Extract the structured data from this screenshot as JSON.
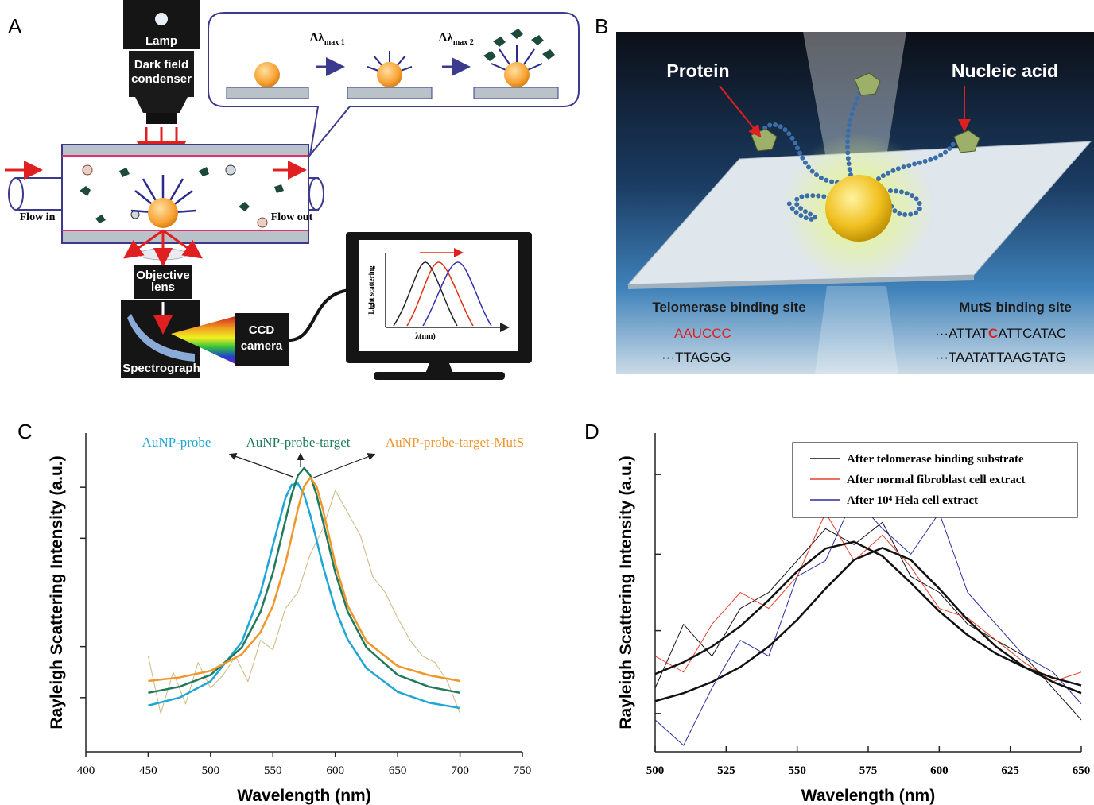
{
  "panel_labels": [
    "A",
    "B",
    "C",
    "D"
  ],
  "diagram_a": {
    "lamp": "Lamp",
    "condenser": [
      "Dark field",
      "condenser"
    ],
    "flow_in": "Flow in",
    "flow_out": "Flow out",
    "objective": [
      "Objective",
      "lens"
    ],
    "spectrograph": "Spectrograph",
    "camera": [
      "CCD",
      "camera"
    ],
    "shift_1": [
      "Δλ",
      "max 1"
    ],
    "shift_2": [
      "Δλ",
      "max 2"
    ],
    "monitor_ylabel": "Light scattering",
    "monitor_xlabel": "λ(nm)"
  },
  "diagram_b": {
    "protein": "Protein",
    "nucleic_acid": "Nucleic acid",
    "telomerase_site": "Telomerase binding site",
    "muts_site": "MutS binding site",
    "telomerase_rna": "AAUCCC",
    "telomerase_dna": "···TTAGGG",
    "muts_top": [
      "···ATTAT",
      "C",
      "ATTCATAC"
    ],
    "muts_bottom": "···TAATATTAAGTATG"
  },
  "chart_data": [
    {
      "type": "line",
      "xlabel": "Wavelength (nm)",
      "ylabel": "Rayleigh Scattering Intensity (a.u.)",
      "xlim": [
        400,
        750
      ],
      "xticks": [
        400,
        450,
        500,
        550,
        600,
        650,
        700,
        750
      ],
      "ylim": [
        0,
        1
      ],
      "yticks": [
        {
          "value": 0.17,
          "label": null
        },
        {
          "value": 0.33,
          "label": null
        },
        {
          "value": 0.67,
          "label": null
        },
        {
          "value": 0.83,
          "label": null
        }
      ],
      "legend": "top",
      "series": [
        {
          "color": "#cdb77c",
          "line_width": 1,
          "x": [
            450,
            460,
            470,
            480,
            490,
            500,
            510,
            520,
            530,
            540,
            550,
            560,
            570,
            580,
            590,
            600,
            610,
            620,
            630,
            640,
            650,
            660,
            670,
            680,
            690,
            700
          ],
          "values": [
            0.3,
            0.12,
            0.25,
            0.15,
            0.28,
            0.2,
            0.24,
            0.3,
            0.22,
            0.35,
            0.32,
            0.45,
            0.5,
            0.62,
            0.7,
            0.82,
            0.75,
            0.68,
            0.55,
            0.5,
            0.42,
            0.35,
            0.3,
            0.28,
            0.22,
            0.12
          ]
        },
        {
          "name": "AuNP-probe",
          "color": "#1fa6d6",
          "line_width": 2.5,
          "x": [
            450,
            475,
            500,
            525,
            540,
            550,
            560,
            565,
            570,
            575,
            580,
            585,
            590,
            600,
            610,
            625,
            650,
            675,
            700
          ],
          "values": [
            0.145,
            0.17,
            0.221,
            0.344,
            0.498,
            0.648,
            0.796,
            0.838,
            0.842,
            0.807,
            0.742,
            0.664,
            0.584,
            0.448,
            0.352,
            0.262,
            0.188,
            0.154,
            0.137
          ]
        },
        {
          "name": "AuNP-probe-target",
          "color": "#1e7a5a",
          "line_width": 2.5,
          "x": [
            450,
            475,
            500,
            525,
            540,
            550,
            560,
            565,
            570,
            575,
            580,
            585,
            590,
            600,
            610,
            625,
            650,
            675,
            700
          ],
          "values": [
            0.185,
            0.204,
            0.241,
            0.327,
            0.439,
            0.562,
            0.725,
            0.806,
            0.867,
            0.89,
            0.867,
            0.806,
            0.725,
            0.562,
            0.439,
            0.327,
            0.241,
            0.204,
            0.185
          ]
        },
        {
          "name": "AuNP-probe-target-MutS",
          "color": "#f0962a",
          "line_width": 2.5,
          "x": [
            450,
            475,
            500,
            525,
            540,
            550,
            560,
            565,
            570,
            575,
            580,
            585,
            590,
            600,
            610,
            625,
            650,
            675,
            700
          ],
          "values": [
            0.222,
            0.233,
            0.254,
            0.306,
            0.375,
            0.458,
            0.59,
            0.675,
            0.762,
            0.833,
            0.86,
            0.833,
            0.762,
            0.59,
            0.458,
            0.346,
            0.269,
            0.24,
            0.222
          ]
        }
      ]
    },
    {
      "type": "line",
      "xlabel": "Wavelength (nm)",
      "ylabel": "Rayleigh Scattering Intensity (a.u.)",
      "xlim": [
        500,
        650
      ],
      "xticks": [
        500,
        525,
        550,
        575,
        600,
        625,
        650
      ],
      "ylim": [
        0,
        1
      ],
      "yticks": [
        {
          "value": 0.12,
          "label": null
        },
        {
          "value": 0.38,
          "label": null
        },
        {
          "value": 0.62,
          "label": null
        },
        {
          "value": 0.87,
          "label": null
        }
      ],
      "legend": "upper right",
      "series": [
        {
          "name": "After telomerase binding substrate",
          "color": "#111111",
          "line_width": 1,
          "x": [
            500,
            510,
            520,
            530,
            540,
            550,
            560,
            570,
            580,
            590,
            600,
            610,
            620,
            630,
            640,
            650
          ],
          "values": [
            0.2,
            0.4,
            0.3,
            0.45,
            0.5,
            0.6,
            0.7,
            0.65,
            0.72,
            0.55,
            0.5,
            0.4,
            0.35,
            0.3,
            0.2,
            0.1
          ]
        },
        {
          "name": "After normal fibroblast cell extract",
          "color": "#e5402a",
          "line_width": 1,
          "x": [
            500,
            510,
            520,
            530,
            540,
            550,
            560,
            570,
            580,
            590,
            600,
            610,
            620,
            630,
            640,
            650
          ],
          "values": [
            0.3,
            0.25,
            0.4,
            0.5,
            0.45,
            0.55,
            0.75,
            0.6,
            0.68,
            0.58,
            0.45,
            0.42,
            0.35,
            0.28,
            0.22,
            0.25
          ]
        },
        {
          "name": "After 10⁴ Hela cell extract",
          "color": "#2b2b9e",
          "line_width": 1,
          "x": [
            500,
            510,
            520,
            530,
            540,
            550,
            560,
            570,
            580,
            590,
            600,
            610,
            620,
            630,
            640,
            650
          ],
          "values": [
            0.1,
            0.02,
            0.2,
            0.35,
            0.3,
            0.55,
            0.6,
            0.8,
            0.7,
            0.62,
            0.75,
            0.5,
            0.4,
            0.3,
            0.25,
            0.15
          ]
        },
        {
          "color": "#111111",
          "line_width": 2.5,
          "x": [
            500,
            510,
            520,
            530,
            540,
            550,
            560,
            570,
            580,
            590,
            600,
            610,
            620,
            630,
            640,
            650
          ],
          "values": [
            0.244,
            0.281,
            0.33,
            0.394,
            0.476,
            0.566,
            0.638,
            0.659,
            0.614,
            0.53,
            0.441,
            0.366,
            0.308,
            0.265,
            0.232,
            0.208
          ]
        },
        {
          "color": "#111111",
          "line_width": 2.5,
          "x": [
            500,
            510,
            520,
            530,
            540,
            550,
            560,
            570,
            580,
            590,
            600,
            610,
            620,
            630,
            640,
            650
          ],
          "values": [
            0.159,
            0.184,
            0.219,
            0.266,
            0.33,
            0.414,
            0.512,
            0.602,
            0.64,
            0.602,
            0.512,
            0.414,
            0.33,
            0.266,
            0.219,
            0.184
          ]
        }
      ]
    }
  ]
}
